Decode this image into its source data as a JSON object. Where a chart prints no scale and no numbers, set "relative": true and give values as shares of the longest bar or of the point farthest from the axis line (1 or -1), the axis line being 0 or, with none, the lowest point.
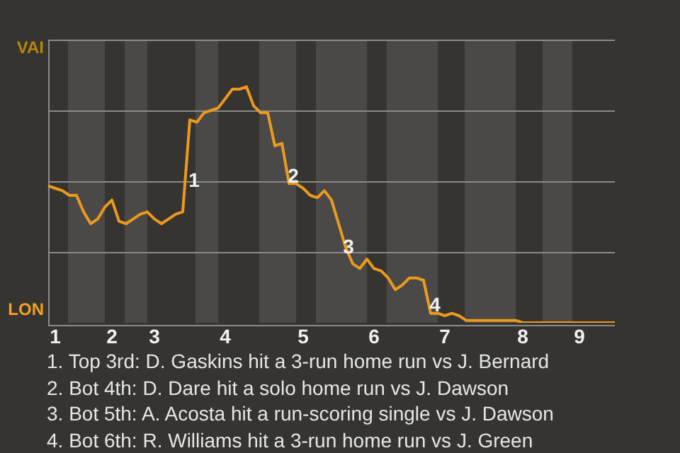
{
  "chart_data": {
    "type": "line",
    "relative": true,
    "categories": [
      null,
      "1",
      null,
      null,
      null,
      null,
      null,
      null,
      null,
      "2",
      null,
      null,
      null,
      null,
      null,
      "3",
      null,
      null,
      null,
      null,
      null,
      null,
      null,
      null,
      null,
      "4",
      null,
      null,
      null,
      null,
      null,
      null,
      null,
      null,
      null,
      null,
      "5",
      null,
      null,
      null,
      null,
      null,
      null,
      null,
      null,
      null,
      "6",
      null,
      null,
      null,
      null,
      null,
      null,
      null,
      null,
      null,
      "7",
      null,
      null,
      null,
      null,
      null,
      null,
      null,
      null,
      null,
      null,
      "8",
      null,
      null,
      null,
      null,
      null,
      null,
      null,
      "9",
      null,
      null,
      null,
      null,
      null
    ],
    "series": [
      {
        "color": "#eb9a1e",
        "values": [
          0.58,
          0.57,
          0.56,
          0.54,
          0.54,
          0.47,
          0.42,
          0.44,
          0.49,
          0.52,
          0.43,
          0.42,
          0.44,
          0.46,
          0.47,
          0.44,
          0.42,
          0.44,
          0.46,
          0.47,
          0.86,
          0.85,
          0.89,
          0.9,
          0.91,
          0.95,
          0.99,
          0.99,
          1,
          0.92,
          0.89,
          0.89,
          0.75,
          0.76,
          0.59,
          0.59,
          0.57,
          0.54,
          0.53,
          0.56,
          0.52,
          0.42,
          0.32,
          0.25,
          0.23,
          0.27,
          0.23,
          0.22,
          0.19,
          0.14,
          0.16,
          0.19,
          0.19,
          0.18,
          0.04,
          0.04,
          0.03,
          0.04,
          0.03,
          0.01,
          0.01,
          0.01,
          0.01,
          0.01,
          0.01,
          0.01,
          0.01,
          0,
          0,
          0,
          0,
          0,
          0,
          0,
          0,
          0,
          0,
          0,
          0,
          0,
          0
        ]
      }
    ],
    "grid": "y",
    "legend": false,
    "marker": "none",
    "line_style": "solid",
    "annotations": [
      "VAI",
      "LON",
      "1",
      "2",
      "3",
      "4",
      "1. Top 3rd: D. Gaskins hit a 3-run home run vs J. Bernard",
      "2. Bot 4th: D. Dare hit a solo home run vs J. Dawson",
      "3. Bot 5th: A. Acosta hit a run-scoring single vs J. Dawson",
      "4. Bot 6th: R. Williams hit a 3-run home run vs J. Green"
    ]
  }
}
